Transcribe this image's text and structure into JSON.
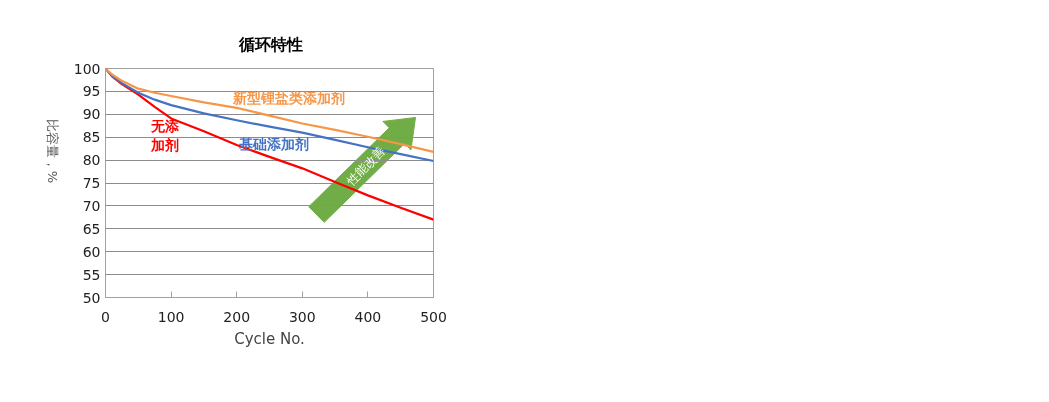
{
  "chart_data": {
    "type": "line",
    "title": "循环特性",
    "xlabel": "Cycle No.",
    "ylabel": "比容量，%",
    "xlim": [
      0,
      500
    ],
    "xticks": [
      0,
      100,
      200,
      300,
      400,
      500
    ],
    "ylim": [
      50,
      100
    ],
    "yticks": [
      50,
      55,
      60,
      65,
      70,
      75,
      80,
      85,
      90,
      95,
      100
    ],
    "grid": "y",
    "marker": "none",
    "line_style": "solid",
    "annotations": [
      "性能改善"
    ],
    "series": [
      {
        "name": "无添加剂",
        "color": "#ff0000",
        "x": [
          0,
          10,
          25,
          50,
          75,
          100,
          150,
          200,
          250,
          300,
          350,
          400,
          450,
          500
        ],
        "values": [
          100,
          98.3,
          96.6,
          94.3,
          91.6,
          89.1,
          86.3,
          83.3,
          80.7,
          78.2,
          75.2,
          72.3,
          69.6,
          67
        ]
      },
      {
        "name": "基础添加剂",
        "color": "#4472c4",
        "x": [
          0,
          10,
          25,
          50,
          75,
          100,
          150,
          200,
          250,
          300,
          350,
          400,
          450,
          500
        ],
        "values": [
          100,
          98.4,
          96.8,
          94.7,
          93.2,
          92,
          90.2,
          88.7,
          87.3,
          86,
          84.4,
          82.8,
          81.3,
          79.8
        ]
      },
      {
        "name": "新型锂盐类添加剂",
        "color": "#f79646",
        "x": [
          0,
          10,
          25,
          50,
          75,
          100,
          150,
          200,
          250,
          300,
          350,
          400,
          450,
          500
        ],
        "values": [
          100,
          98.7,
          97.3,
          95.6,
          94.7,
          94,
          92.6,
          91.4,
          89.7,
          88,
          86.6,
          85.1,
          83.5,
          81.8
        ]
      }
    ]
  }
}
